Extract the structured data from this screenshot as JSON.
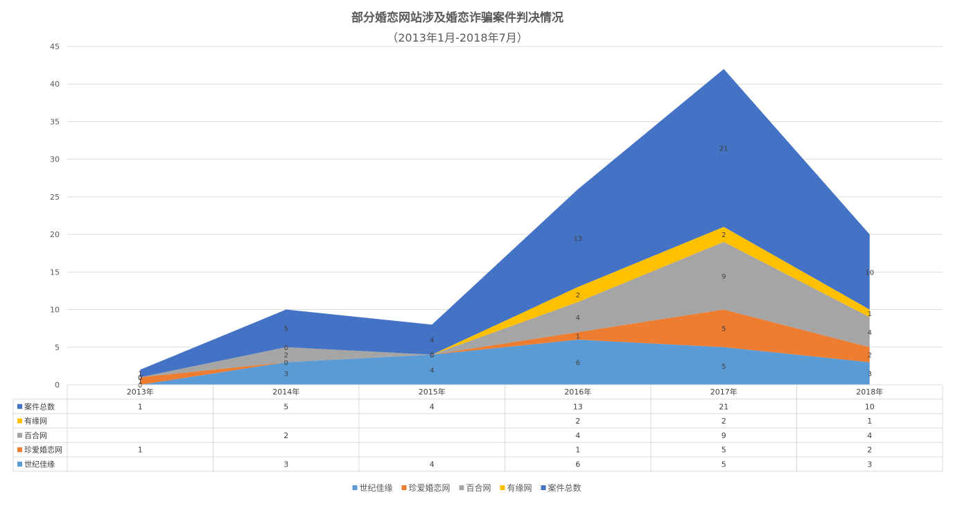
{
  "title": "部分婚恋网站涉及婚恋诈骗案件判决情况",
  "subtitle": "（2013年1月-2018年7月）",
  "chart_data": {
    "type": "area",
    "stacked": true,
    "categories": [
      "2013年",
      "2014年",
      "2015年",
      "2016年",
      "2017年",
      "2018年"
    ],
    "ylim": [
      0,
      45
    ],
    "yticks": [
      0,
      5,
      10,
      15,
      20,
      25,
      30,
      35,
      40,
      45
    ],
    "grid": true,
    "legend_position": "bottom",
    "series": [
      {
        "name": "世纪佳缘",
        "color": "#5B9BD5",
        "values": [
          0,
          3,
          4,
          6,
          5,
          3
        ],
        "table": [
          "",
          "3",
          "4",
          "6",
          "5",
          "3"
        ],
        "labels": [
          "0",
          "3",
          "4",
          "6",
          "5",
          "3"
        ]
      },
      {
        "name": "珍爱婚恋网",
        "color": "#ED7D31",
        "values": [
          1,
          0,
          0,
          1,
          5,
          2
        ],
        "table": [
          "1",
          "",
          "",
          "1",
          "5",
          "2"
        ],
        "labels": [
          "1",
          "0",
          "0",
          "1",
          "5",
          "2"
        ]
      },
      {
        "name": "百合网",
        "color": "#A5A5A5",
        "values": [
          0,
          2,
          0,
          4,
          9,
          4
        ],
        "table": [
          "",
          "2",
          "",
          "4",
          "9",
          "4"
        ],
        "labels": [
          "0",
          "2",
          "0",
          "4",
          "9",
          "4"
        ]
      },
      {
        "name": "有缘网",
        "color": "#FFC000",
        "values": [
          0,
          0,
          0,
          2,
          2,
          1
        ],
        "table": [
          "",
          "",
          "",
          "2",
          "2",
          "1"
        ],
        "labels": [
          "0",
          "0",
          "0",
          "2",
          "2",
          "1"
        ]
      },
      {
        "name": "案件总数",
        "color": "#4472C4",
        "values": [
          1,
          5,
          4,
          13,
          21,
          10
        ],
        "table": [
          "1",
          "5",
          "4",
          "13",
          "21",
          "10"
        ],
        "labels": [
          "1",
          "5",
          "4",
          "13",
          "21",
          "10"
        ]
      }
    ],
    "table_row_order": [
      "案件总数",
      "有缘网",
      "百合网",
      "珍爱婚恋网",
      "世纪佳缘"
    ]
  }
}
